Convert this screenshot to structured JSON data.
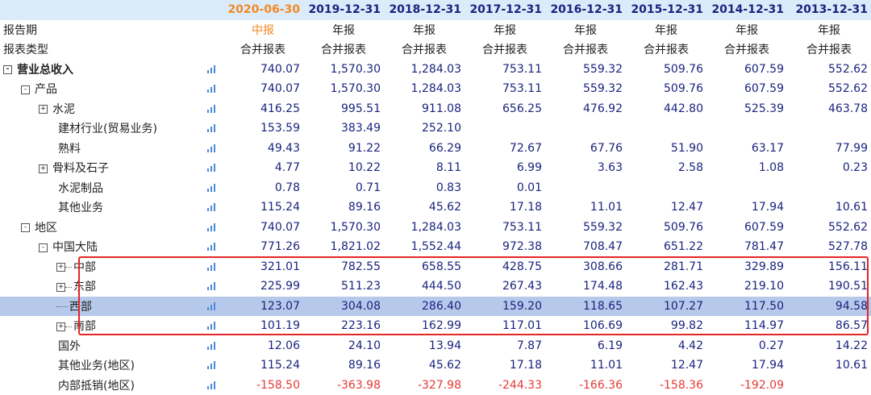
{
  "columns": [
    "2020-06-30",
    "2019-12-31",
    "2018-12-31",
    "2017-12-31",
    "2016-12-31",
    "2015-12-31",
    "2014-12-31",
    "2013-12-31"
  ],
  "report_period_label": "报告期",
  "report_periods": [
    "中报",
    "年报",
    "年报",
    "年报",
    "年报",
    "年报",
    "年报",
    "年报"
  ],
  "report_type_label": "报表类型",
  "report_types": [
    "合并报表",
    "合并报表",
    "合并报表",
    "合并报表",
    "合并报表",
    "合并报表",
    "合并报表",
    "合并报表"
  ],
  "rows": [
    {
      "label": "营业总收入",
      "values": [
        "740.07",
        "1,570.30",
        "1,284.03",
        "753.11",
        "559.32",
        "509.76",
        "607.59",
        "552.62"
      ]
    },
    {
      "label": "产品",
      "values": [
        "740.07",
        "1,570.30",
        "1,284.03",
        "753.11",
        "559.32",
        "509.76",
        "607.59",
        "552.62"
      ]
    },
    {
      "label": "水泥",
      "values": [
        "416.25",
        "995.51",
        "911.08",
        "656.25",
        "476.92",
        "442.80",
        "525.39",
        "463.78"
      ]
    },
    {
      "label": "建材行业(贸易业务)",
      "values": [
        "153.59",
        "383.49",
        "252.10",
        "",
        "",
        "",
        "",
        ""
      ]
    },
    {
      "label": "熟料",
      "values": [
        "49.43",
        "91.22",
        "66.29",
        "72.67",
        "67.76",
        "51.90",
        "63.17",
        "77.99"
      ]
    },
    {
      "label": "骨料及石子",
      "values": [
        "4.77",
        "10.22",
        "8.11",
        "6.99",
        "3.63",
        "2.58",
        "1.08",
        "0.23"
      ]
    },
    {
      "label": "水泥制品",
      "values": [
        "0.78",
        "0.71",
        "0.83",
        "0.01",
        "",
        "",
        "",
        ""
      ]
    },
    {
      "label": "其他业务",
      "values": [
        "115.24",
        "89.16",
        "45.62",
        "17.18",
        "11.01",
        "12.47",
        "17.94",
        "10.61"
      ]
    },
    {
      "label": "地区",
      "values": [
        "740.07",
        "1,570.30",
        "1,284.03",
        "753.11",
        "559.32",
        "509.76",
        "607.59",
        "552.62"
      ]
    },
    {
      "label": "中国大陆",
      "values": [
        "771.26",
        "1,821.02",
        "1,552.44",
        "972.38",
        "708.47",
        "651.22",
        "781.47",
        "527.78"
      ]
    },
    {
      "label": "中部",
      "values": [
        "321.01",
        "782.55",
        "658.55",
        "428.75",
        "308.66",
        "281.71",
        "329.89",
        "156.11"
      ]
    },
    {
      "label": "东部",
      "values": [
        "225.99",
        "511.23",
        "444.50",
        "267.43",
        "174.48",
        "162.43",
        "219.10",
        "190.51"
      ]
    },
    {
      "label": "西部",
      "values": [
        "123.07",
        "304.08",
        "286.40",
        "159.20",
        "118.65",
        "107.27",
        "117.50",
        "94.58"
      ]
    },
    {
      "label": "南部",
      "values": [
        "101.19",
        "223.16",
        "162.99",
        "117.01",
        "106.69",
        "99.82",
        "114.97",
        "86.57"
      ]
    },
    {
      "label": "国外",
      "values": [
        "12.06",
        "24.10",
        "13.94",
        "7.87",
        "6.19",
        "4.42",
        "0.27",
        "14.22"
      ]
    },
    {
      "label": "其他业务(地区)",
      "values": [
        "115.24",
        "89.16",
        "45.62",
        "17.18",
        "11.01",
        "12.47",
        "17.94",
        "10.61"
      ]
    },
    {
      "label": "内部抵销(地区)",
      "values": [
        "-158.50",
        "-363.98",
        "-327.98",
        "-244.33",
        "-166.36",
        "-158.36",
        "-192.09",
        ""
      ]
    }
  ],
  "tree_toggle_symbol": "+",
  "tree_collapse_symbol": "-",
  "chart_icon": "bar-chart-icon",
  "colors": {
    "header_bg": "#dcebfa",
    "accent": "#f08a24",
    "value": "#1a237e",
    "negative": "#e53935",
    "selected_row": "#b7c9ea",
    "highlight_box": "#e32626"
  }
}
